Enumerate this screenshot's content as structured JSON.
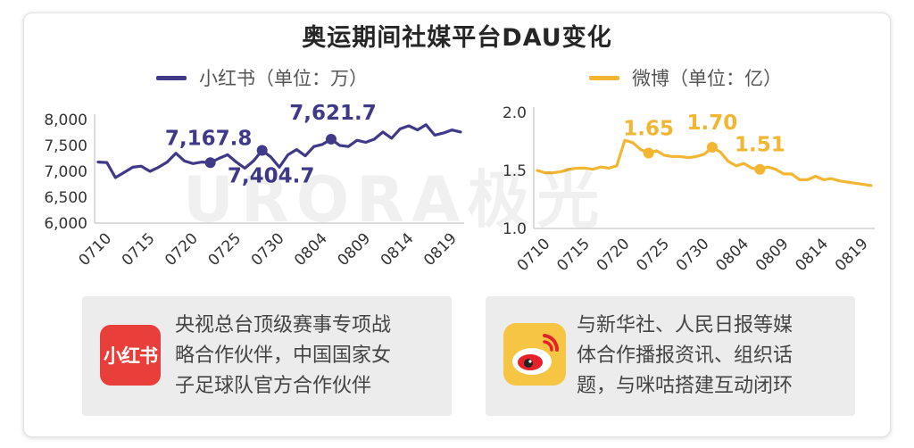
{
  "title": "奥运期间社媒平台DAU变化",
  "colors": {
    "xiaohongshu": "#3f3988",
    "weibo": "#f2b632"
  },
  "watermark": "URORA极光",
  "chart_data": [
    {
      "type": "line",
      "legend": "小红书（单位：万）",
      "color": "#3f3988",
      "x_ticks": [
        "0710",
        "0715",
        "0720",
        "0725",
        "0730",
        "0804",
        "0809",
        "0814",
        "0819"
      ],
      "y_ticks": [
        "8,000",
        "7,500",
        "7,000",
        "6,500",
        "6,000"
      ],
      "ylim": [
        6000,
        8000
      ],
      "x_start": "07-09",
      "x_end": "08-21",
      "values": [
        7180,
        7170,
        6880,
        6980,
        7080,
        7100,
        7000,
        7080,
        7180,
        7350,
        7200,
        7150,
        7180,
        7167.8,
        7250,
        7320,
        7180,
        7060,
        7200,
        7404.7,
        7280,
        7080,
        7320,
        7420,
        7300,
        7480,
        7520,
        7621.7,
        7500,
        7480,
        7600,
        7560,
        7620,
        7760,
        7640,
        7820,
        7880,
        7800,
        7900,
        7700,
        7740,
        7800,
        7760
      ],
      "labeled_points": [
        {
          "x": "07-22",
          "value": 7167.8,
          "label": "7,167.8"
        },
        {
          "x": "07-28",
          "value": 7404.7,
          "label": "7,404.7"
        },
        {
          "x": "08-05",
          "value": 7621.7,
          "label": "7,621.7"
        }
      ]
    },
    {
      "type": "line",
      "legend": "微博（单位：亿）",
      "color": "#f2b632",
      "x_ticks": [
        "0710",
        "0715",
        "0720",
        "0725",
        "0730",
        "0804",
        "0809",
        "0814",
        "0819"
      ],
      "y_ticks": [
        "2.0",
        "1.5",
        "1.0"
      ],
      "ylim": [
        1.0,
        2.0
      ],
      "x_start": "07-09",
      "x_end": "08-21",
      "values": [
        1.5,
        1.48,
        1.48,
        1.49,
        1.51,
        1.52,
        1.52,
        1.51,
        1.53,
        1.52,
        1.54,
        1.76,
        1.74,
        1.68,
        1.65,
        1.67,
        1.63,
        1.62,
        1.62,
        1.61,
        1.62,
        1.64,
        1.7,
        1.66,
        1.58,
        1.54,
        1.56,
        1.52,
        1.51,
        1.53,
        1.51,
        1.47,
        1.47,
        1.42,
        1.42,
        1.45,
        1.42,
        1.43,
        1.41,
        1.4,
        1.39,
        1.38,
        1.37
      ],
      "labeled_points": [
        {
          "x": "07-23",
          "value": 1.65,
          "label": "1.65"
        },
        {
          "x": "07-31",
          "value": 1.7,
          "label": "1.70"
        },
        {
          "x": "08-06",
          "value": 1.51,
          "label": "1.51"
        }
      ]
    }
  ],
  "cards": [
    {
      "logo_text": "小红书",
      "text": [
        "央视总台顶级赛事专项战",
        "略合作伙伴，中国国家女",
        "子足球队官方合作伙伴"
      ]
    },
    {
      "logo_icon": "weibo-logo-icon",
      "text": [
        "与新华社、人民日报等媒",
        "体合作播报资讯、组织话",
        "题，与咪咕搭建互动闭环"
      ]
    }
  ]
}
